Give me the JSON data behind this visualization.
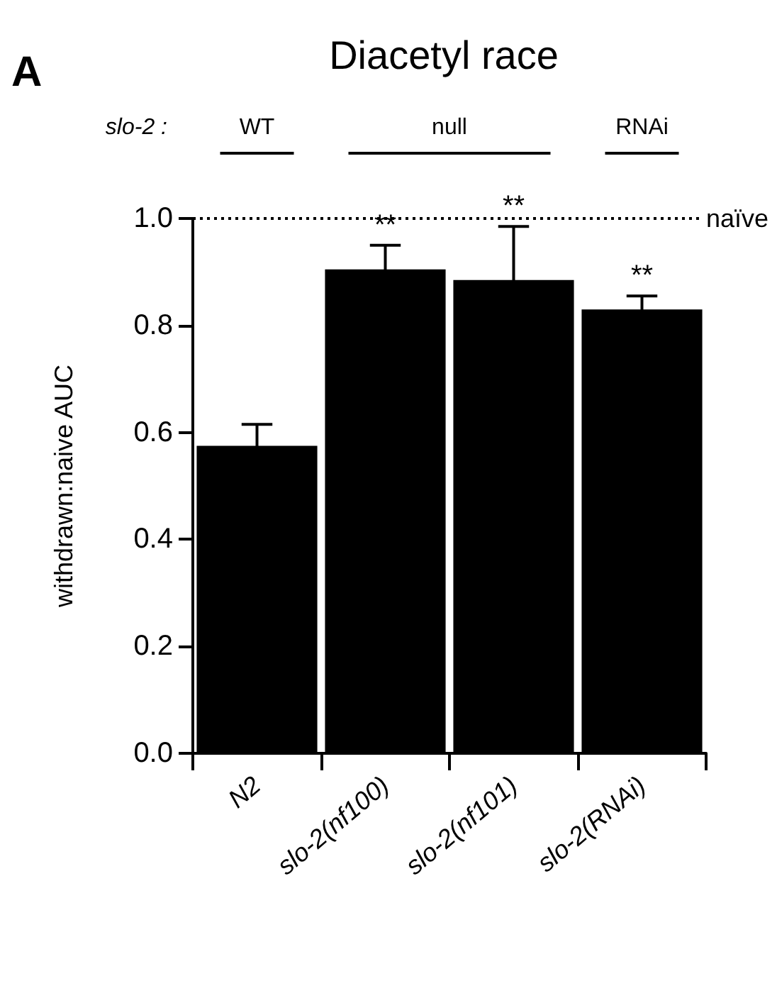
{
  "chart_data": {
    "type": "bar",
    "title": "Diacetyl race",
    "ylabel": "withdrawn:naive AUC",
    "categories": [
      "N2",
      "slo-2(nf100)",
      "slo-2(nf101)",
      "slo-2(RNAi)"
    ],
    "values": [
      0.575,
      0.905,
      0.885,
      0.83
    ],
    "errors": [
      0.04,
      0.045,
      0.1,
      0.025
    ],
    "color": "#000000",
    "ylim": [
      0,
      1.0
    ],
    "yticks": [
      {
        "value": 0,
        "label": "0.0"
      },
      {
        "value": 0.2,
        "label": "0.2"
      },
      {
        "value": 0.4,
        "label": "0.4"
      },
      {
        "value": 0.6,
        "label": "0.6"
      },
      {
        "value": 0.8,
        "label": "0.8"
      },
      {
        "value": 1.0,
        "label": "1.0"
      }
    ],
    "ref_lines": [
      {
        "axis": "y",
        "value": 1.0,
        "label": "naïve",
        "line_style": "dotted",
        "color": "#000000"
      }
    ],
    "annotations": [
      "A",
      "slo-2 :",
      "WT",
      "null",
      "RNAi",
      {
        "text": "**",
        "x": "slo-2(nf100)",
        "y": 0.95
      },
      {
        "text": "**",
        "x": "slo-2(nf101)",
        "y": 0.985
      },
      {
        "text": "**",
        "x": "slo-2(RNAi)",
        "y": 0.855
      }
    ],
    "grid": false
  }
}
